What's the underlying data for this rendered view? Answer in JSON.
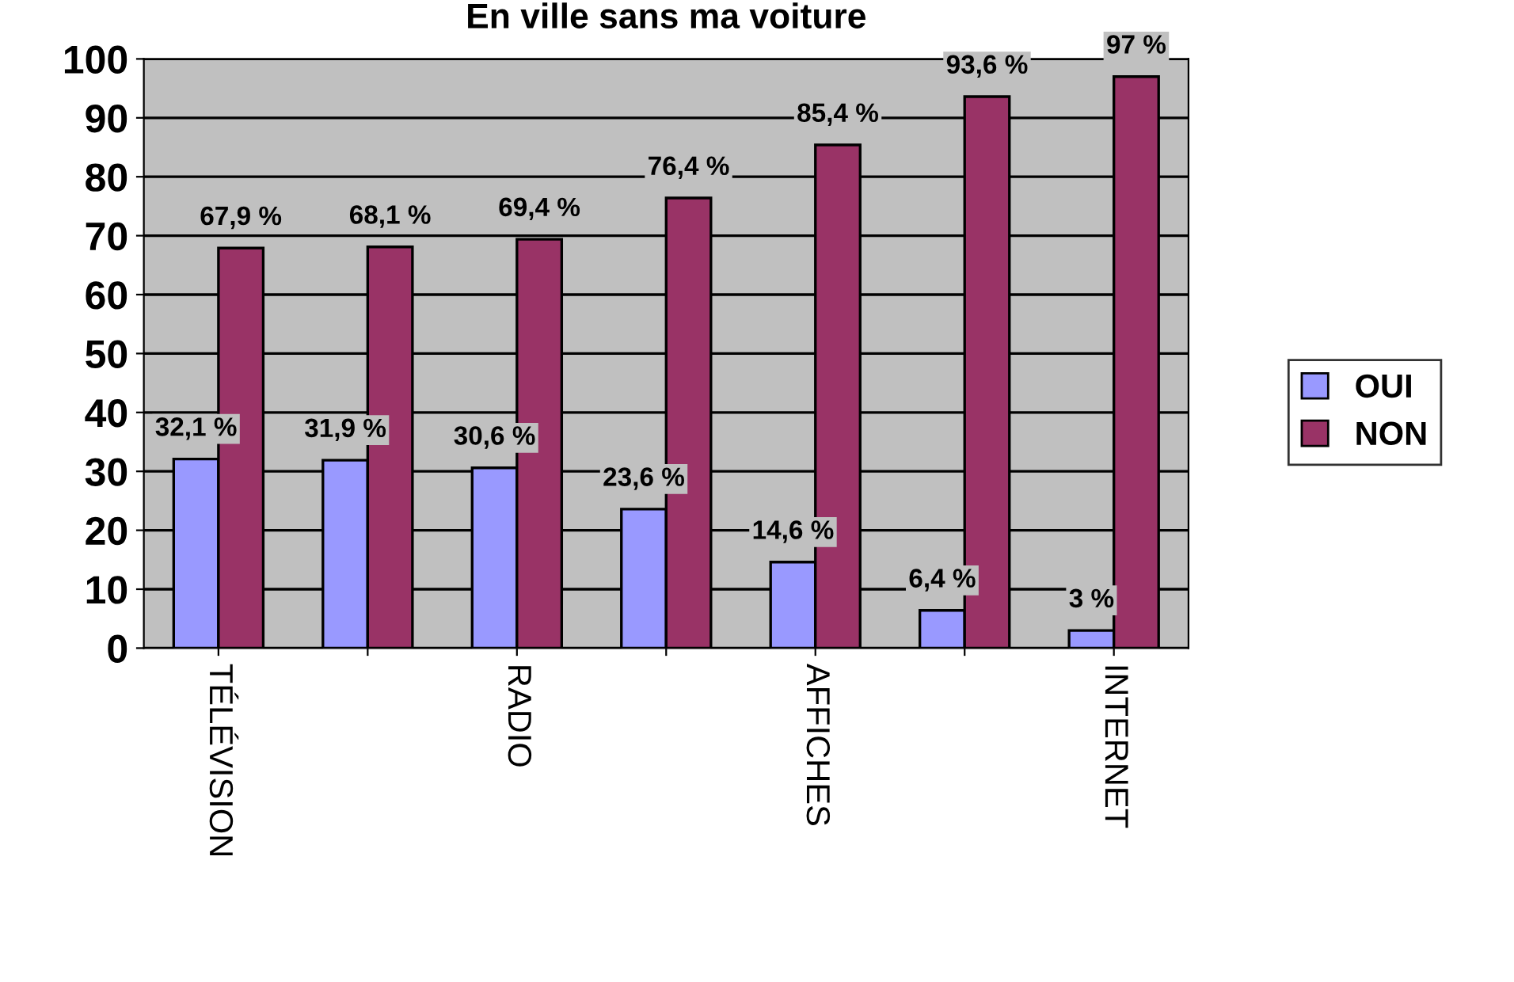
{
  "chart_data": {
    "type": "bar",
    "title": "En ville sans ma voiture",
    "categories": [
      "TÉLÉVISION",
      null,
      "RADIO",
      null,
      "AFFICHES",
      null,
      "INTERNET"
    ],
    "series": [
      {
        "name": "OUI",
        "color": "#9999ff",
        "values": [
          32.1,
          31.9,
          30.6,
          23.6,
          14.6,
          6.4,
          3
        ],
        "value_labels": [
          "32,1 %",
          "31,9 %",
          "30,6 %",
          "23,6 %",
          "14,6 %",
          "6,4 %",
          "3 %"
        ]
      },
      {
        "name": "NON",
        "color": "#993366",
        "values": [
          67.9,
          68.1,
          69.4,
          76.4,
          85.4,
          93.6,
          97
        ],
        "value_labels": [
          "67,9 %",
          "68,1 %",
          "69,4 %",
          "76,4 %",
          "85,4 %",
          "93,6 %",
          "97 %"
        ]
      }
    ],
    "ylim": [
      0,
      100
    ],
    "yticks": [
      0,
      10,
      20,
      30,
      40,
      50,
      60,
      70,
      80,
      90,
      100
    ],
    "grid": "y",
    "legend": "right"
  }
}
